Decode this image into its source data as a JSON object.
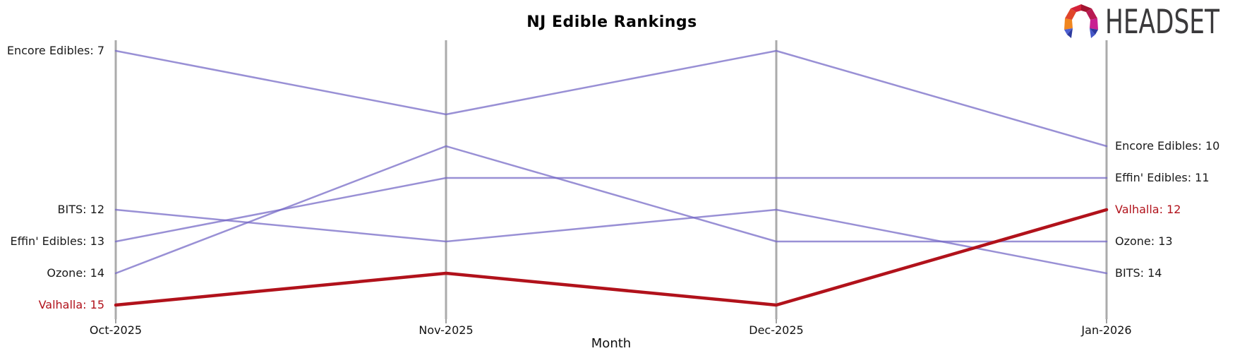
{
  "logo": {
    "text": "HEADSET",
    "icon": "headset-faceted-arch-icon"
  },
  "colors": {
    "line": "#7265c5",
    "highlight": "#b1121b",
    "axis": "#ababab",
    "tick": "#8a8a8a",
    "label_text": "#1a1a1a",
    "title_text": "#000000",
    "logo_text": "#3a393b",
    "logo_palette": [
      "#f0861f",
      "#e0452a",
      "#d42239",
      "#a31430",
      "#b81a52",
      "#c92091",
      "#4d5fd0",
      "#2c3a9f",
      "#4456c8",
      "#2b379e"
    ]
  },
  "chart_data": {
    "type": "line",
    "title": "NJ Edible Rankings",
    "xlabel": "Month",
    "ylabel": "",
    "x": [
      "Oct-2025",
      "Nov-2025",
      "Dec-2025",
      "Jan-2026"
    ],
    "ylim": [
      7,
      15
    ],
    "y_inverted": true,
    "grid": false,
    "legend_position": "edge-labels",
    "series": [
      {
        "name": "Encore Edibles",
        "values": [
          7,
          9,
          7,
          10
        ],
        "highlight": false
      },
      {
        "name": "BITS",
        "values": [
          12,
          13,
          12,
          14
        ],
        "highlight": false
      },
      {
        "name": "Effin' Edibles",
        "values": [
          13,
          11,
          11,
          11
        ],
        "highlight": false
      },
      {
        "name": "Ozone",
        "values": [
          14,
          10,
          13,
          13
        ],
        "highlight": false
      },
      {
        "name": "Valhalla",
        "values": [
          15,
          14,
          15,
          12
        ],
        "highlight": true
      }
    ],
    "left_labels": [
      {
        "text": "Encore Edibles: 7",
        "rank": 7,
        "highlight": false
      },
      {
        "text": "BITS: 12",
        "rank": 12,
        "highlight": false
      },
      {
        "text": "Effin' Edibles: 13",
        "rank": 13,
        "highlight": false
      },
      {
        "text": "Ozone: 14",
        "rank": 14,
        "highlight": false
      },
      {
        "text": "Valhalla: 15",
        "rank": 15,
        "highlight": true
      }
    ],
    "right_labels": [
      {
        "text": "Encore Edibles: 10",
        "rank": 10,
        "highlight": false
      },
      {
        "text": "Effin' Edibles: 11",
        "rank": 11,
        "highlight": false
      },
      {
        "text": "Valhalla: 12",
        "rank": 12,
        "highlight": true
      },
      {
        "text": "Ozone: 13",
        "rank": 13,
        "highlight": false
      },
      {
        "text": "BITS: 14",
        "rank": 14,
        "highlight": false
      }
    ]
  }
}
